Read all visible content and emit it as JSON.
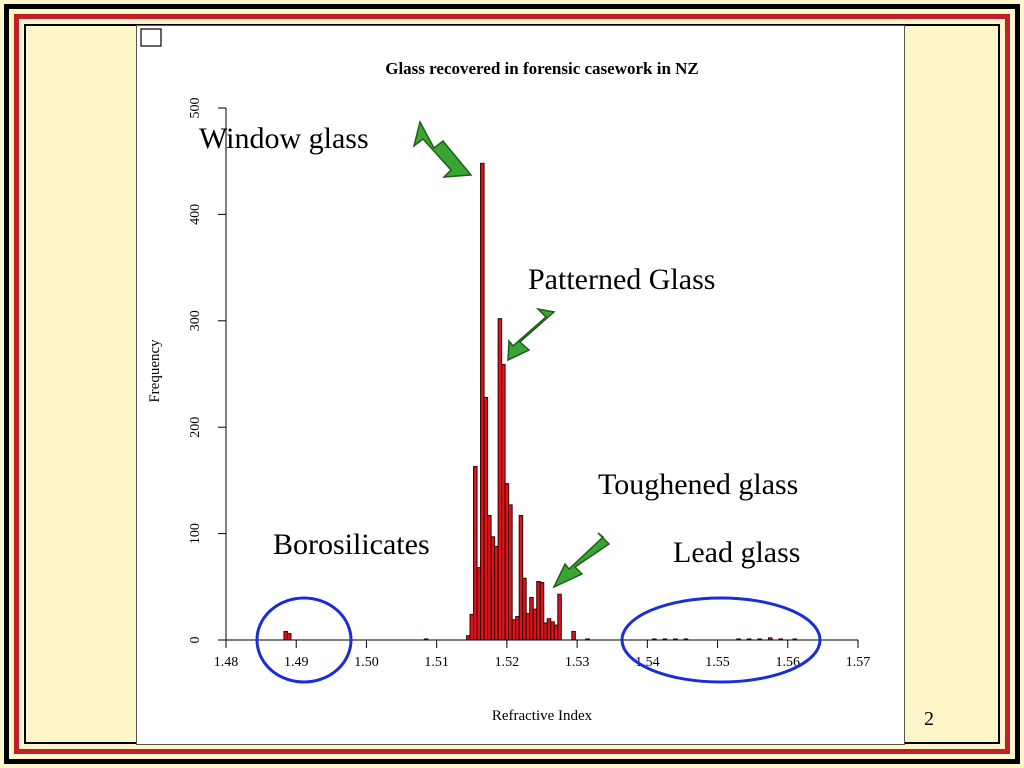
{
  "slide": {
    "page_number": "2"
  },
  "annotations": {
    "window_glass": "Window glass",
    "patterned_glass": "Patterned Glass",
    "toughened_glass": "Toughened glass",
    "lead_glass": "Lead glass",
    "borosilicates": "Borosilicates"
  },
  "colors": {
    "bar_fill": "#d8161c",
    "arrow_fill": "#3aa534",
    "circle_stroke": "#1a2ed8",
    "frame_red": "#c0202a",
    "background": "#fef6c8"
  },
  "chart_data": {
    "type": "bar",
    "title": "Glass recovered in forensic casework in NZ",
    "xlabel": "Refractive Index",
    "ylabel": "Frequency",
    "xlim": [
      1.48,
      1.57
    ],
    "ylim": [
      0,
      500
    ],
    "bin_width": 0.0005,
    "xticks": [
      "1.48",
      "1.49",
      "1.50",
      "1.51",
      "1.52",
      "1.53",
      "1.54",
      "1.55",
      "1.56",
      "1.57"
    ],
    "yticks": [
      "0",
      "100",
      "200",
      "300",
      "400",
      "500"
    ],
    "x": [
      1.4885,
      1.489,
      1.5085,
      1.5145,
      1.515,
      1.5155,
      1.516,
      1.5165,
      1.517,
      1.5175,
      1.518,
      1.5185,
      1.519,
      1.5195,
      1.52,
      1.5205,
      1.521,
      1.5215,
      1.522,
      1.5225,
      1.523,
      1.5235,
      1.524,
      1.5245,
      1.525,
      1.5255,
      1.526,
      1.5265,
      1.527,
      1.5275,
      1.5295,
      1.5315,
      1.541,
      1.5425,
      1.544,
      1.5455,
      1.553,
      1.5545,
      1.556,
      1.5575,
      1.559,
      1.561
    ],
    "values": [
      8,
      6,
      1,
      4,
      24,
      163,
      68,
      448,
      228,
      117,
      97,
      88,
      302,
      259,
      147,
      127,
      19,
      22,
      117,
      58,
      25,
      40,
      29,
      55,
      54,
      16,
      20,
      17,
      14,
      43,
      8,
      1,
      1,
      1,
      1,
      1,
      1,
      1,
      1,
      2,
      1,
      1
    ],
    "grid": false,
    "legend": "none"
  }
}
